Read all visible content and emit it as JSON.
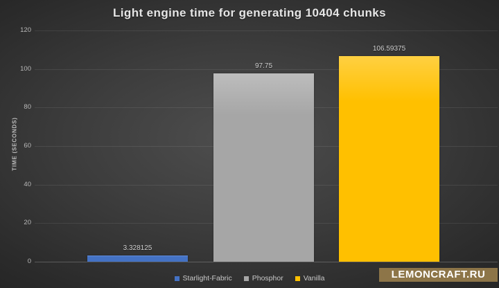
{
  "chart_data": {
    "type": "bar",
    "title": "Light engine time for generating 10404 chunks",
    "ylabel": "TIME (SECONDS)",
    "xlabel": "",
    "categories": [
      "Starlight-Fabric",
      "Phosphor",
      "Vanilla"
    ],
    "values": [
      3.328125,
      97.75,
      106.59375
    ],
    "value_labels": [
      "3.328125",
      "97.75",
      "106.59375"
    ],
    "colors": [
      "#4472c4",
      "#a6a6a6",
      "#ffc000"
    ],
    "colors_top": [
      "#6089d2",
      "#bdbdbd",
      "#ffd042"
    ],
    "ylim": [
      0,
      120
    ],
    "yticks": [
      0,
      20,
      40,
      60,
      80,
      100,
      120
    ],
    "grid": true,
    "legend_position": "bottom",
    "background_theme": "dark-gray-gradient"
  },
  "watermark": {
    "label": "LEMONCRAFT.RU",
    "background": "#8d7548",
    "text_color": "#ffffff"
  }
}
